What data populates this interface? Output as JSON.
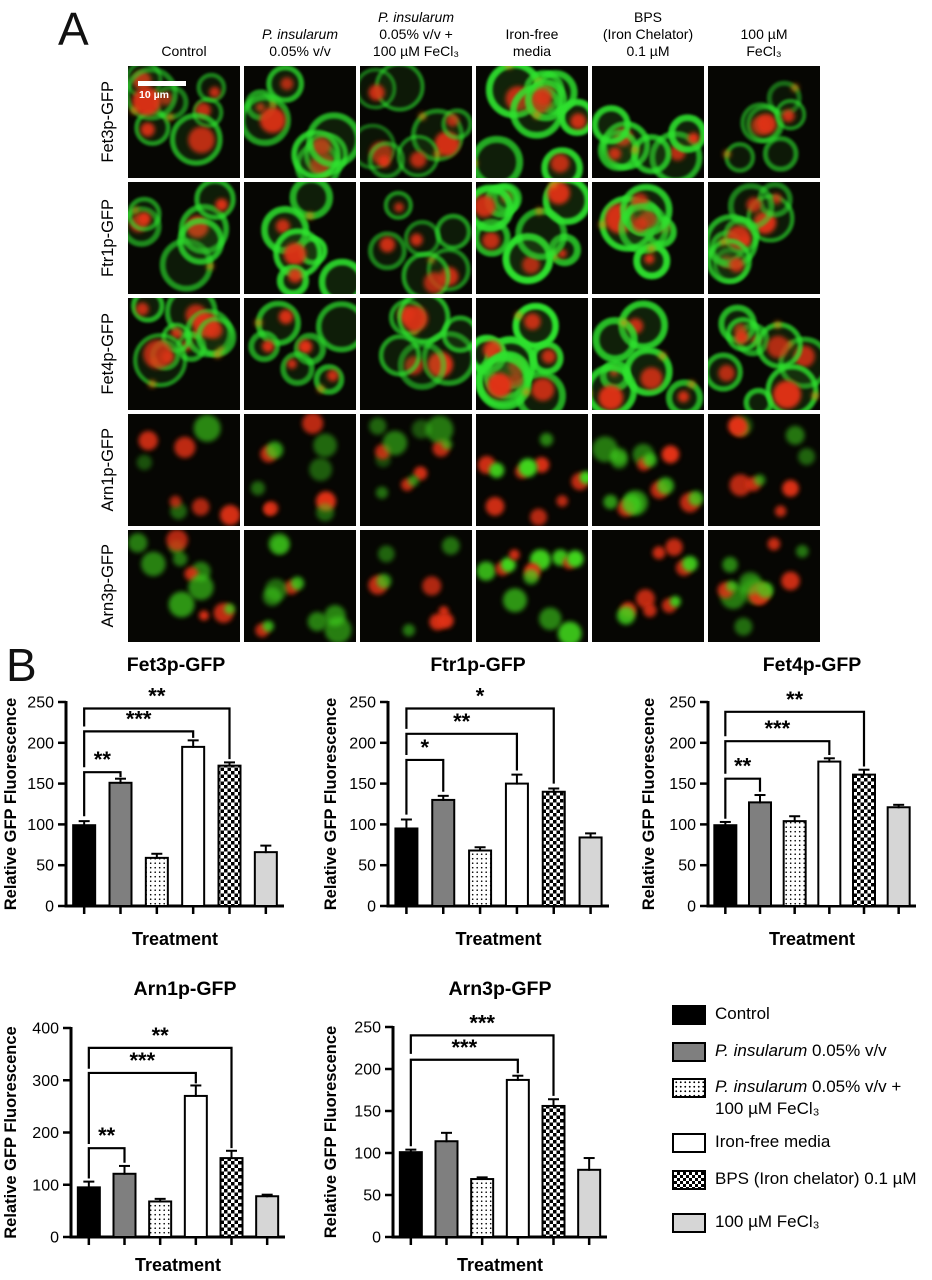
{
  "figure": {
    "panel_a_label": "A",
    "panel_b_label": "B"
  },
  "microscopy": {
    "scale_bar_label": "10 µm",
    "column_headers": [
      {
        "lines": [
          {
            "t": "Control",
            "i": false
          }
        ]
      },
      {
        "lines": [
          {
            "t": "P. insularum",
            "i": true
          },
          {
            "t": "0.05% v/v",
            "i": false
          }
        ]
      },
      {
        "lines": [
          {
            "t": "P. insularum",
            "i": true
          },
          {
            "t": "0.05% v/v +",
            "i": false
          },
          {
            "t": "100 µM FeCl₃",
            "i": false
          }
        ]
      },
      {
        "lines": [
          {
            "t": "Iron-free",
            "i": false
          },
          {
            "t": "media",
            "i": false
          }
        ]
      },
      {
        "lines": [
          {
            "t": "BPS",
            "i": false
          },
          {
            "t": "(Iron Chelator)",
            "i": false
          },
          {
            "t": "0.1 µM",
            "i": false
          }
        ]
      },
      {
        "lines": [
          {
            "t": "100 µM",
            "i": false
          },
          {
            "t": "FeCl₃",
            "i": false
          }
        ]
      }
    ],
    "row_labels": [
      "Fet3p-GFP",
      "Ftr1p-GFP",
      "Fet4p-GFP",
      "Arn1p-GFP",
      "Arn3p-GFP"
    ],
    "row_styles": [
      "membrane-ring",
      "membrane-ring",
      "membrane-ring",
      "punctate",
      "punctate"
    ],
    "channel_colors": {
      "gfp_green": "#2de22d",
      "counterstain_red": "#e23312"
    }
  },
  "chart_data": [
    {
      "type": "bar",
      "title": "Fet3p-GFP",
      "xlabel": "Treatment",
      "ylabel": "Relative GFP Fluorescence",
      "ylim": [
        0,
        250
      ],
      "ytick_step": 50,
      "categories": [
        "Control",
        "P. insularum 0.05% v/v",
        "P. insularum 0.05% v/v + 100 µM FeCl₃",
        "Iron-free media",
        "BPS (Iron chelator) 0.1 µM",
        "100 µM FeCl₃"
      ],
      "values": [
        99,
        151,
        59,
        195,
        172,
        66
      ],
      "errors": [
        5,
        5,
        5,
        8,
        4,
        8
      ],
      "significance": [
        {
          "from": 0,
          "to": 1,
          "label": "**",
          "line": 164,
          "drop_from": 110,
          "drop_to": 158
        },
        {
          "from": 0,
          "to": 3,
          "label": "***",
          "line": 214,
          "drop_from": 170,
          "drop_to": 206
        },
        {
          "from": 0,
          "to": 4,
          "label": "**",
          "line": 242,
          "drop_from": 220,
          "drop_to": 180
        }
      ]
    },
    {
      "type": "bar",
      "title": "Ftr1p-GFP",
      "xlabel": "Treatment",
      "ylabel": "Relative GFP Fluorescence",
      "ylim": [
        0,
        250
      ],
      "ytick_step": 50,
      "categories": [
        "Control",
        "P. insularum 0.05% v/v",
        "P. insularum 0.05% v/v + 100 µM FeCl₃",
        "Iron-free media",
        "BPS (Iron chelator) 0.1 µM",
        "100 µM FeCl₃"
      ],
      "values": [
        95,
        130,
        68,
        150,
        140,
        84
      ],
      "errors": [
        11,
        5,
        4,
        11,
        4,
        5
      ],
      "significance": [
        {
          "from": 0,
          "to": 1,
          "label": "*",
          "line": 179,
          "drop_from": 112,
          "drop_to": 140
        },
        {
          "from": 0,
          "to": 3,
          "label": "**",
          "line": 211,
          "drop_from": 185,
          "drop_to": 166
        },
        {
          "from": 0,
          "to": 4,
          "label": "*",
          "line": 242,
          "drop_from": 217,
          "drop_to": 150
        }
      ]
    },
    {
      "type": "bar",
      "title": "Fet4p-GFP",
      "xlabel": "Treatment",
      "ylabel": "Relative GFP Fluorescence",
      "ylim": [
        0,
        250
      ],
      "ytick_step": 50,
      "categories": [
        "Control",
        "P. insularum 0.05% v/v",
        "P. insularum 0.05% v/v + 100 µM FeCl₃",
        "Iron-free media",
        "BPS (Iron chelator) 0.1 µM",
        "100 µM FeCl₃"
      ],
      "values": [
        99,
        127,
        104,
        177,
        161,
        121
      ],
      "errors": [
        4,
        9,
        6,
        4,
        6,
        3
      ],
      "significance": [
        {
          "from": 0,
          "to": 1,
          "label": "**",
          "line": 156,
          "drop_from": 107,
          "drop_to": 140
        },
        {
          "from": 0,
          "to": 3,
          "label": "***",
          "line": 202,
          "drop_from": 162,
          "drop_to": 185
        },
        {
          "from": 0,
          "to": 4,
          "label": "**",
          "line": 238,
          "drop_from": 208,
          "drop_to": 171
        }
      ]
    },
    {
      "type": "bar",
      "title": "Arn1p-GFP",
      "xlabel": "Treatment",
      "ylabel": "Relative GFP Fluorescence",
      "ylim": [
        0,
        400
      ],
      "ytick_step": 100,
      "categories": [
        "Control",
        "P. insularum 0.05% v/v",
        "P. insularum 0.05% v/v + 100 µM FeCl₃",
        "Iron-free media",
        "BPS (Iron chelator) 0.1 µM",
        "100 µM FeCl₃"
      ],
      "values": [
        95,
        121,
        68,
        270,
        151,
        78
      ],
      "errors": [
        11,
        15,
        5,
        20,
        14,
        3
      ],
      "significance": [
        {
          "from": 0,
          "to": 1,
          "label": "**",
          "line": 170,
          "drop_from": 112,
          "drop_to": 142
        },
        {
          "from": 0,
          "to": 3,
          "label": "***",
          "line": 314,
          "drop_from": 178,
          "drop_to": 294
        },
        {
          "from": 0,
          "to": 4,
          "label": "**",
          "line": 362,
          "drop_from": 322,
          "drop_to": 170
        }
      ]
    },
    {
      "type": "bar",
      "title": "Arn3p-GFP",
      "xlabel": "Treatment",
      "ylabel": "Relative GFP Fluorescence",
      "ylim": [
        0,
        250
      ],
      "ytick_step": 50,
      "categories": [
        "Control",
        "P. insularum 0.05% v/v",
        "P. insularum 0.05% v/v + 100 µM FeCl₃",
        "Iron-free media",
        "BPS (Iron chelator) 0.1 µM",
        "100 µM FeCl₃"
      ],
      "values": [
        101,
        114,
        69,
        187,
        156,
        80
      ],
      "errors": [
        3,
        10,
        2,
        5,
        8,
        14
      ],
      "significance": [
        {
          "from": 0,
          "to": 3,
          "label": "***",
          "line": 211,
          "drop_from": 108,
          "drop_to": 195
        },
        {
          "from": 0,
          "to": 4,
          "label": "***",
          "line": 240,
          "drop_from": 218,
          "drop_to": 168
        }
      ]
    }
  ],
  "bar_styles": [
    "solid-black",
    "solid-darkgray",
    "dotted",
    "solid-white",
    "checker",
    "solid-lightgray"
  ],
  "legend": {
    "items": [
      {
        "pattern": "solid-black",
        "segments": [
          {
            "t": "Control",
            "i": false
          }
        ]
      },
      {
        "pattern": "solid-darkgray",
        "segments": [
          {
            "t": "P. insularum",
            "i": true
          },
          {
            "t": " 0.05% v/v",
            "i": false
          }
        ]
      },
      {
        "pattern": "dotted",
        "segments": [
          {
            "t": "P. insularum",
            "i": true
          },
          {
            "t": " 0.05% v/v +",
            "i": false
          }
        ],
        "line2": "100 µM  FeCl₃"
      },
      {
        "pattern": "solid-white",
        "segments": [
          {
            "t": "Iron-free media",
            "i": false
          }
        ]
      },
      {
        "pattern": "checker",
        "segments": [
          {
            "t": "BPS (Iron chelator) 0.1 µM",
            "i": false
          }
        ]
      },
      {
        "pattern": "solid-lightgray",
        "segments": [
          {
            "t": "100 µM FeCl₃",
            "i": false
          }
        ]
      }
    ]
  },
  "colors": {
    "bar_black": "#000000",
    "bar_darkgray": "#7f7f7f",
    "bar_white": "#ffffff",
    "bar_lightgray": "#d6d6d6",
    "axis_black": "#000000"
  }
}
